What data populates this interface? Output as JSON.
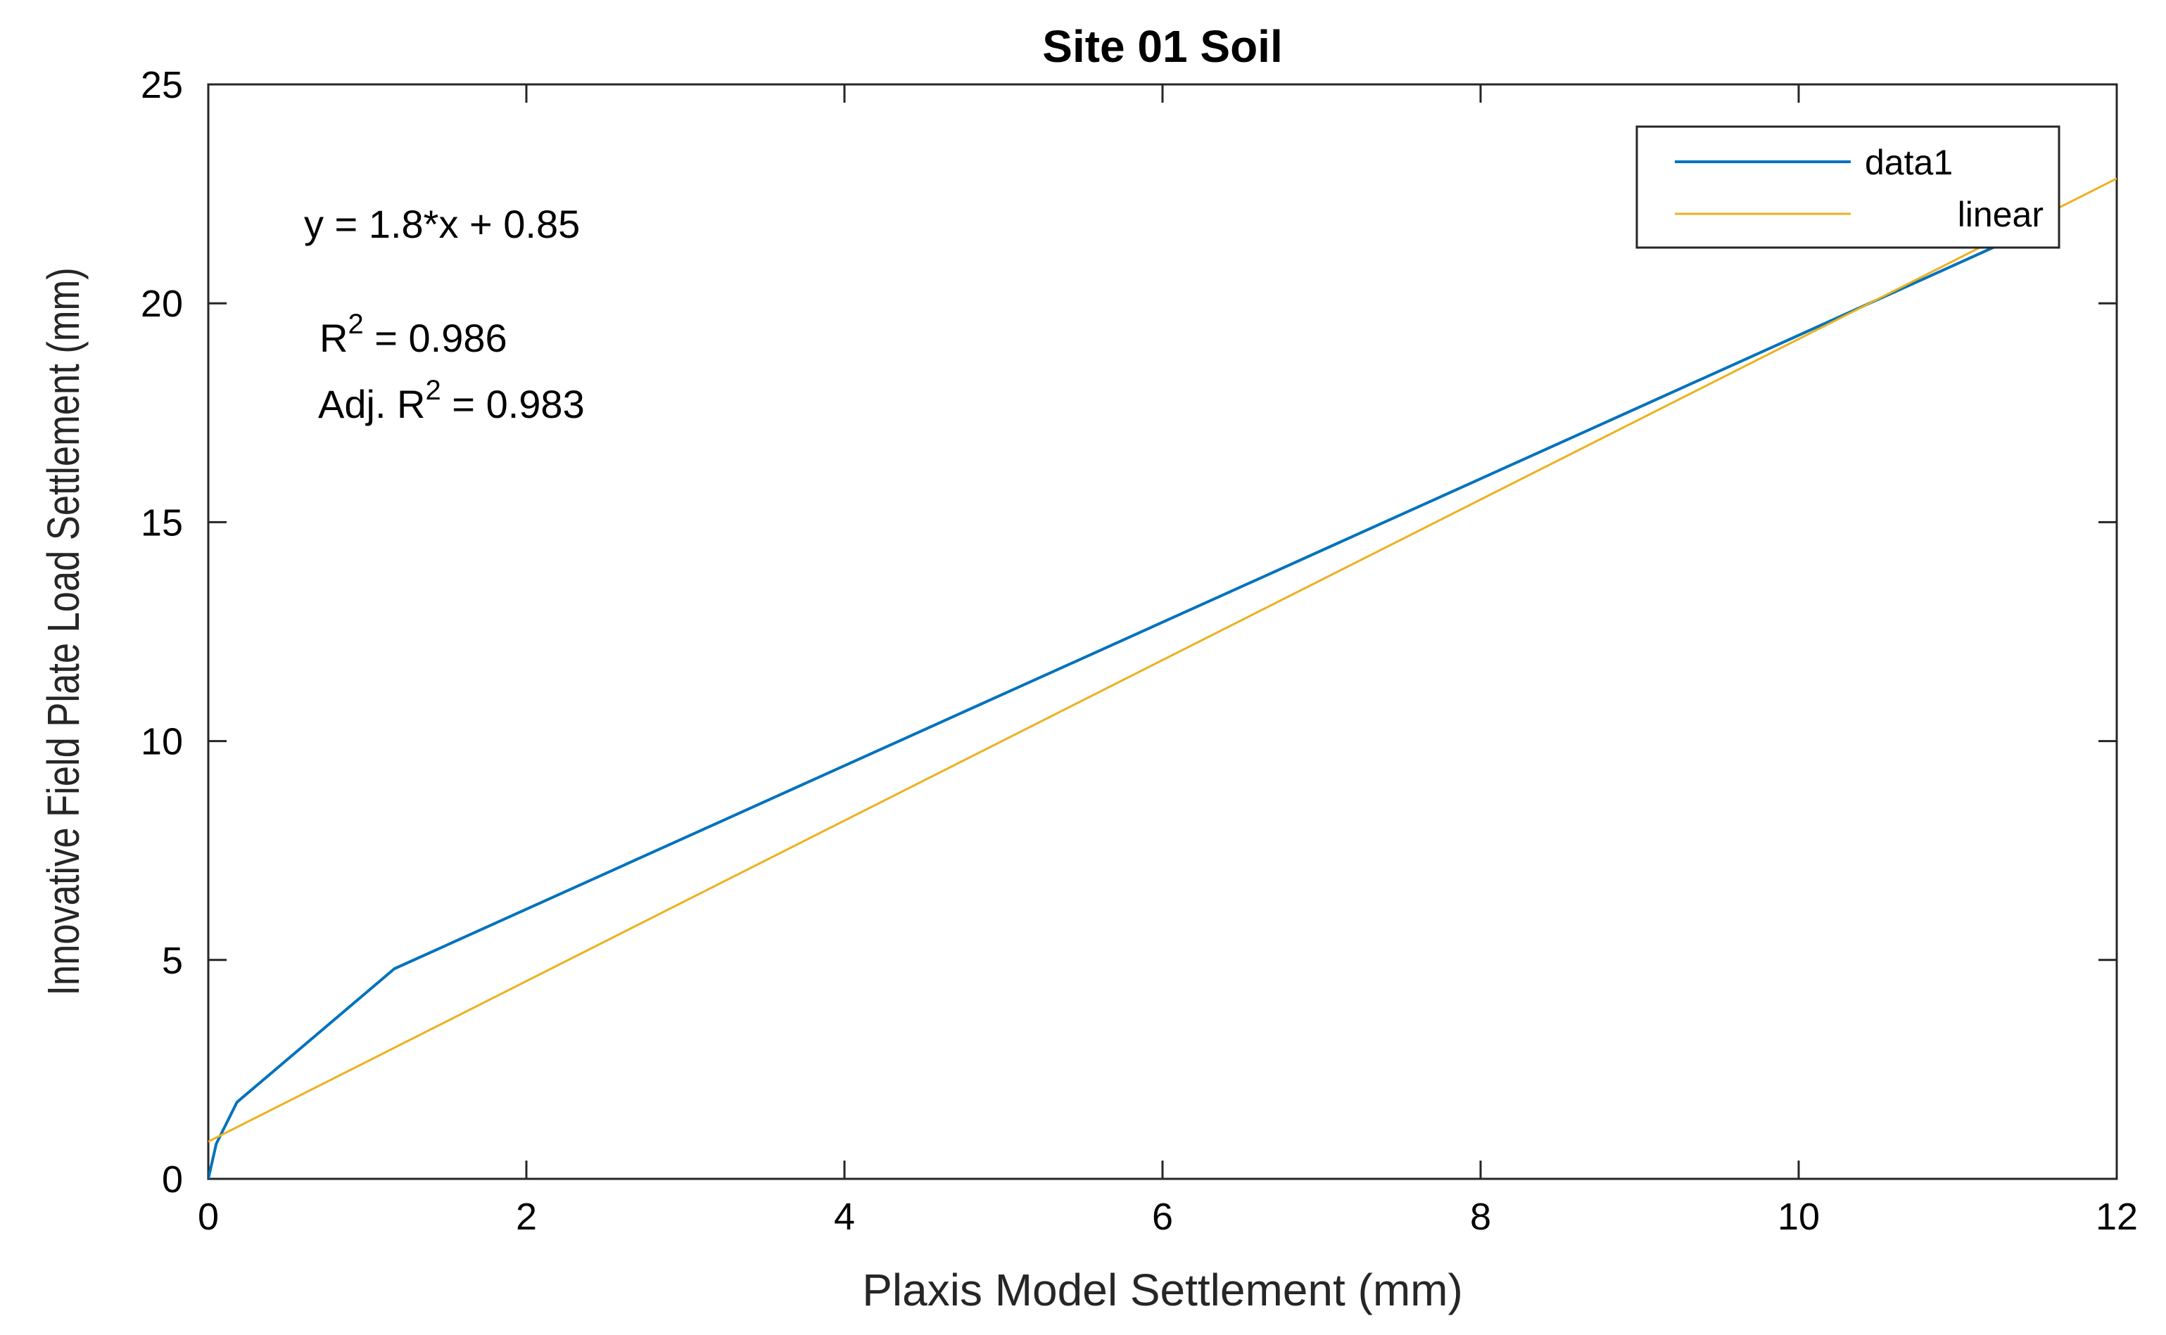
{
  "chart_data": {
    "type": "line",
    "title": "Site 01 Soil",
    "xlabel": "Plaxis Model Settlement (mm)",
    "ylabel": "Innovative Field Plate Load Settlement (mm)",
    "xlim": [
      0,
      12
    ],
    "ylim": [
      0,
      25
    ],
    "x_ticks": [
      0,
      2,
      4,
      6,
      8,
      10,
      12
    ],
    "y_ticks": [
      0,
      5,
      10,
      15,
      20,
      25
    ],
    "grid": false,
    "legend": {
      "placement": "top-right",
      "entries": [
        "data1",
        "linear"
      ]
    },
    "series": [
      {
        "name": "data1",
        "color": "#0072BD",
        "x": [
          0,
          0.05,
          0.18,
          1.17,
          11.3
        ],
        "y": [
          0,
          0.8,
          1.75,
          4.8,
          21.4
        ]
      },
      {
        "name": "linear",
        "color": "#EDB120",
        "x": [
          0,
          12
        ],
        "y": [
          0.85,
          22.85
        ]
      }
    ],
    "annotations": {
      "equation": "y = 1.8*x + 0.85",
      "r2_prefix": "R",
      "r2_exp": "2",
      "r2_value": " = 0.986",
      "adj_prefix": "Adj. R",
      "adj_exp": "2",
      "adj_value": " = 0.983"
    }
  }
}
